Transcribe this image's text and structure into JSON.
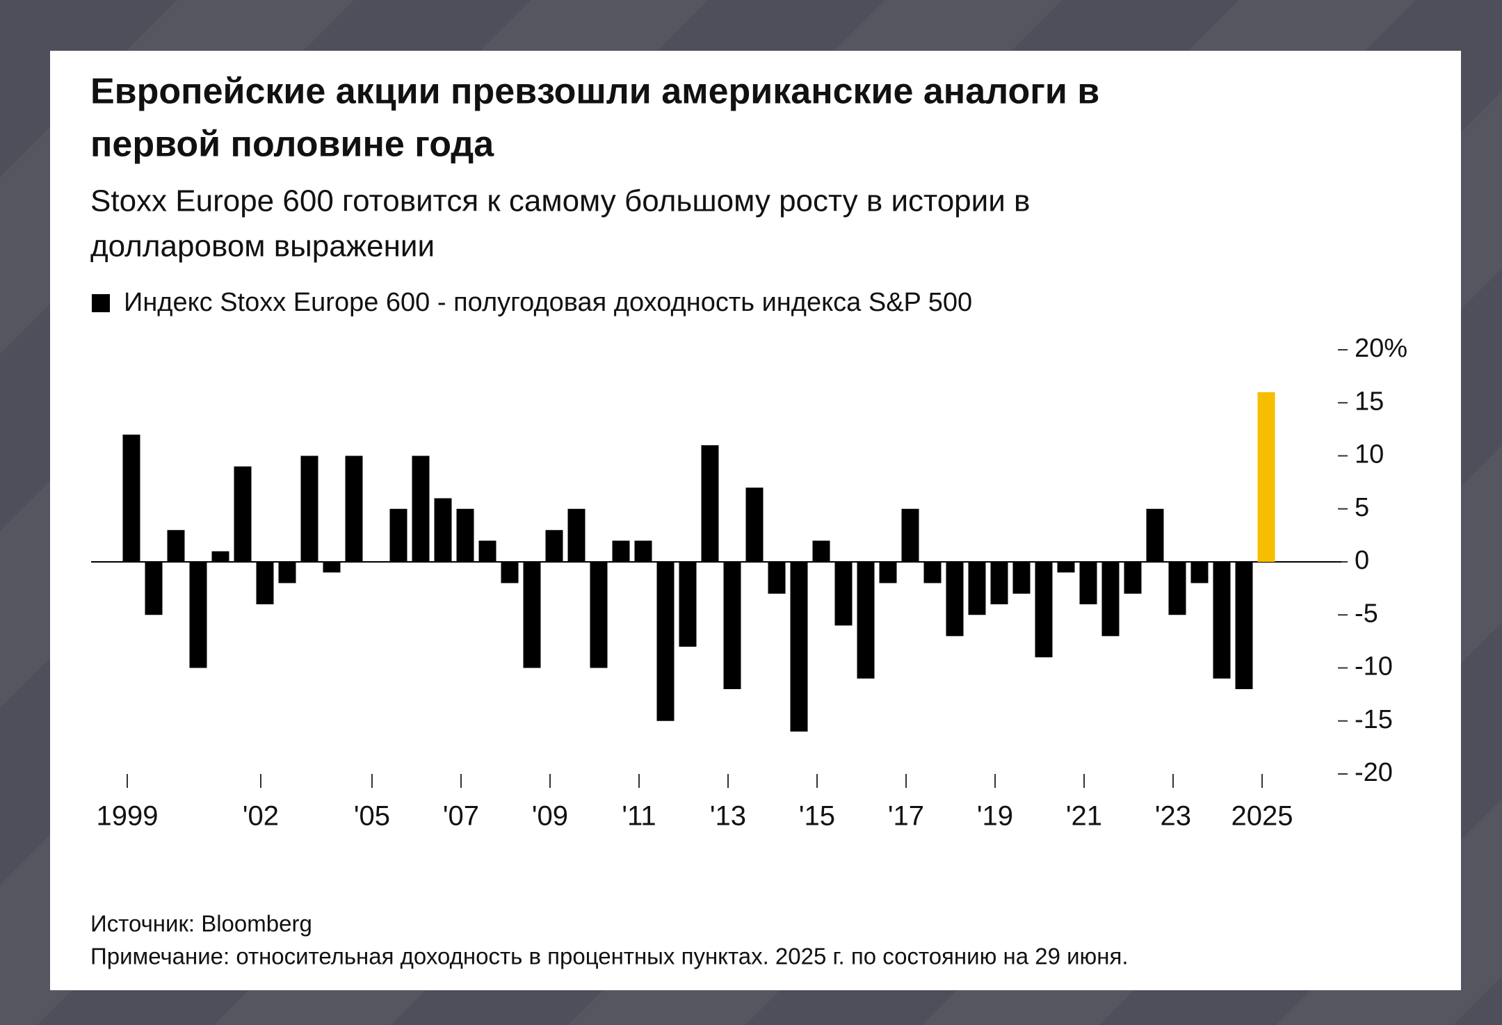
{
  "chart_data": {
    "type": "bar",
    "title": [
      "Европейские акции превзошли американские аналоги в",
      "первой половине года"
    ],
    "subtitle": [
      "Stoxx Europe 600 готовится к самому большому росту в истории в",
      "долларовом выражении"
    ],
    "legend": "Индекс Stoxx Europe 600 - полугодовая доходность индекса S&P 500",
    "source": "Источник: Bloomberg",
    "note": "Примечание: относительная доходность в процентных пунктах. 2025 г. по состоянию на 29 июня.",
    "categories": [
      "1999",
      null,
      null,
      null,
      null,
      null,
      "'02",
      null,
      null,
      null,
      null,
      "'05",
      null,
      null,
      null,
      "'07",
      null,
      null,
      null,
      "'09",
      null,
      null,
      null,
      "'11",
      null,
      null,
      null,
      "'13",
      null,
      null,
      null,
      "'15",
      null,
      null,
      null,
      "'17",
      null,
      null,
      null,
      "'19",
      null,
      null,
      null,
      "'21",
      null,
      null,
      null,
      "'23",
      null,
      null,
      null,
      "2025"
    ],
    "values": [
      12,
      -5,
      3,
      -10,
      1,
      9,
      -4,
      -2,
      10,
      -1,
      10,
      0,
      5,
      10,
      6,
      5,
      2,
      -2,
      -10,
      3,
      5,
      -10,
      2,
      2,
      -15,
      -8,
      11,
      -12,
      7,
      -3,
      -16,
      2,
      -6,
      -11,
      -2,
      5,
      -2,
      -7,
      -5,
      -4,
      -3,
      -9,
      -1,
      -4,
      -7,
      -3,
      5,
      -5,
      -2,
      -11,
      -12,
      16
    ],
    "colors": [
      "#000000",
      "#000000",
      "#000000",
      "#000000",
      "#000000",
      "#000000",
      "#000000",
      "#000000",
      "#000000",
      "#000000",
      "#000000",
      "#000000",
      "#000000",
      "#000000",
      "#000000",
      "#000000",
      "#000000",
      "#000000",
      "#000000",
      "#000000",
      "#000000",
      "#000000",
      "#000000",
      "#000000",
      "#000000",
      "#000000",
      "#000000",
      "#000000",
      "#000000",
      "#000000",
      "#000000",
      "#000000",
      "#000000",
      "#000000",
      "#000000",
      "#000000",
      "#000000",
      "#000000",
      "#000000",
      "#000000",
      "#000000",
      "#000000",
      "#000000",
      "#000000",
      "#000000",
      "#000000",
      "#000000",
      "#000000",
      "#000000",
      "#000000",
      "#000000",
      "#f5be00"
    ],
    "ylim": [
      -20,
      20
    ],
    "yticks": [
      {
        "value": 20,
        "label": "20%"
      },
      15,
      10,
      5,
      0,
      -5,
      -10,
      -15,
      -20
    ]
  }
}
